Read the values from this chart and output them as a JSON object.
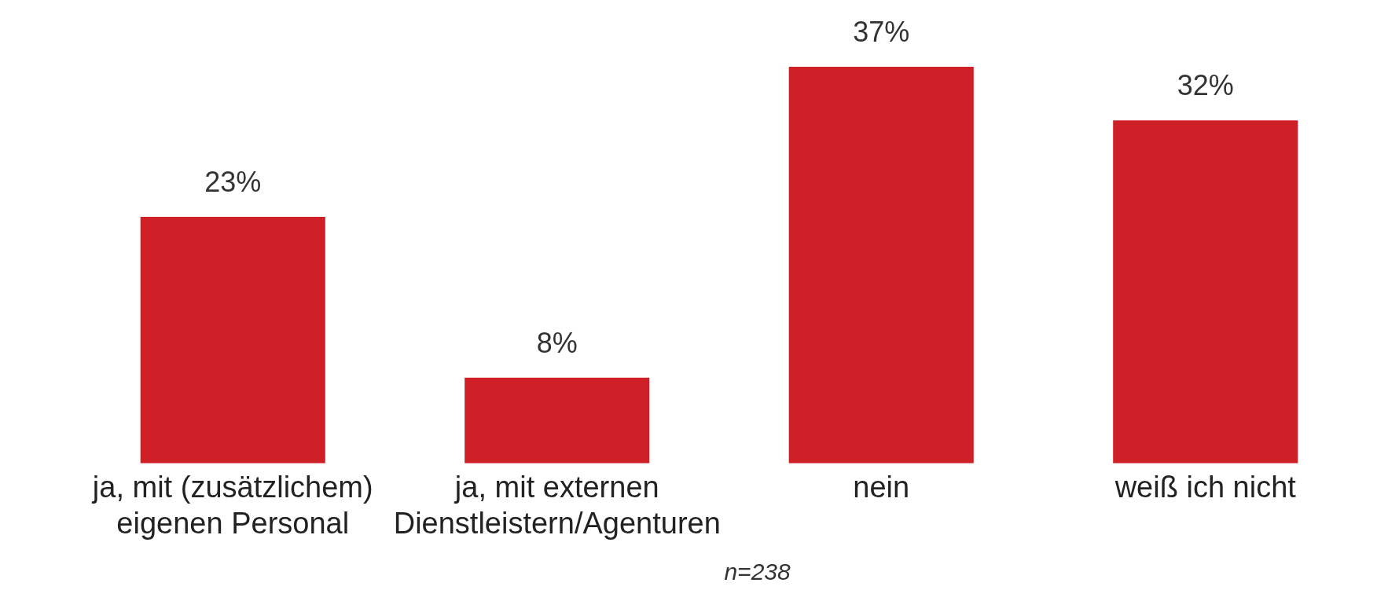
{
  "chart_data": {
    "type": "bar",
    "categories": [
      "ja, mit (zusätzlichem) eigenen Personal",
      "ja, mit externen Dienstleistern/Agenturen",
      "nein",
      "weiß ich nicht"
    ],
    "values": [
      23,
      8,
      37,
      32
    ],
    "color": "#d02027",
    "data_labels": true,
    "value_labels": [
      "23%",
      "8%",
      "37%",
      "32%"
    ],
    "annotations": [
      "n=238"
    ],
    "grid": false,
    "legend": false
  }
}
